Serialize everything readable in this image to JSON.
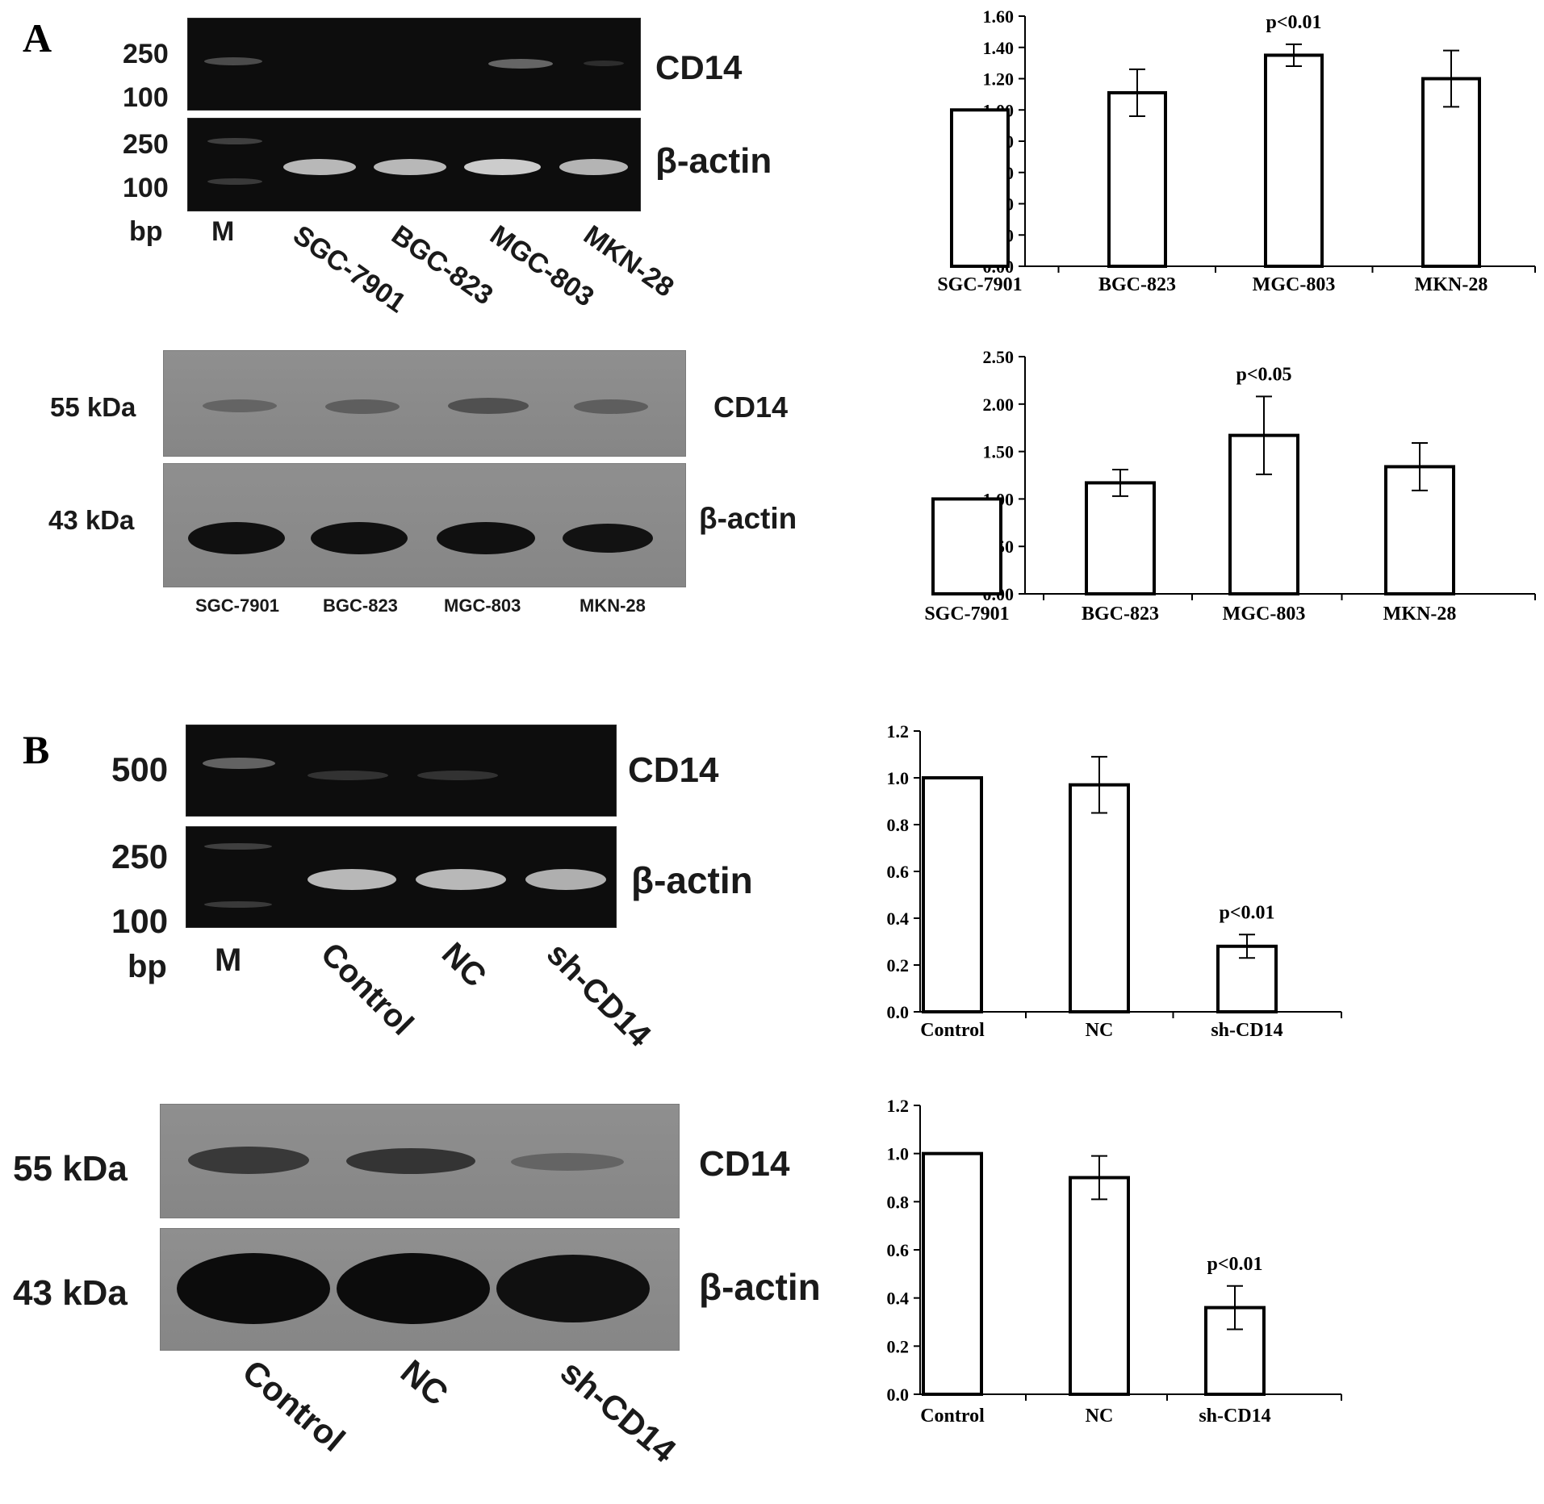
{
  "panels": {
    "a": {
      "letter": "A",
      "rtpcr": {
        "markers": [
          "250",
          "100",
          "250",
          "100"
        ],
        "bp": "bp",
        "lanes": [
          "M",
          "SGC-7901",
          "BGC-823",
          "MGC-803",
          "MKN-28"
        ],
        "targets": [
          "CD14",
          "β-actin"
        ]
      },
      "western": {
        "sizes": [
          "55 kDa",
          "43 kDa"
        ],
        "targets": [
          "CD14",
          "β-actin"
        ],
        "lanes": [
          "SGC-7901",
          "BGC-823",
          "MGC-803",
          "MKN-28"
        ]
      }
    },
    "b": {
      "letter": "B",
      "rtpcr": {
        "markers": [
          "500",
          "250",
          "100"
        ],
        "bp": "bp",
        "lanes": [
          "M",
          "Control",
          "NC",
          "sh-CD14"
        ],
        "targets": [
          "CD14",
          "β-actin"
        ]
      },
      "western": {
        "sizes": [
          "55 kDa",
          "43 kDa"
        ],
        "targets": [
          "CD14",
          "β-actin"
        ],
        "lanes": [
          "Control",
          "NC",
          "sh-CD14"
        ]
      }
    }
  },
  "chart_data": [
    {
      "type": "bar",
      "categories": [
        "SGC-7901",
        "BGC-823",
        "MGC-803",
        "MKN-28"
      ],
      "values": [
        1.0,
        1.11,
        1.35,
        1.2
      ],
      "errors": [
        0.0,
        0.15,
        0.07,
        0.18
      ],
      "ylim": [
        0,
        1.6
      ],
      "yticks": [
        "0.00",
        "0.20",
        "0.40",
        "0.60",
        "0.80",
        "1.00",
        "1.20",
        "1.40",
        "1.60"
      ],
      "annotations": [
        {
          "category": "MGC-803",
          "text": "p<0.01"
        }
      ]
    },
    {
      "type": "bar",
      "categories": [
        "SGC-7901",
        "BGC-823",
        "MGC-803",
        "MKN-28"
      ],
      "values": [
        1.0,
        1.17,
        1.67,
        1.34
      ],
      "errors": [
        0.0,
        0.14,
        0.41,
        0.25
      ],
      "ylim": [
        0,
        2.5
      ],
      "yticks": [
        "0.00",
        "0.50",
        "1.00",
        "1.50",
        "2.00",
        "2.50"
      ],
      "annotations": [
        {
          "category": "MGC-803",
          "text": "p<0.05"
        }
      ]
    },
    {
      "type": "bar",
      "categories": [
        "Control",
        "NC",
        "sh-CD14"
      ],
      "values": [
        1.0,
        0.97,
        0.28
      ],
      "errors": [
        0.0,
        0.12,
        0.05
      ],
      "ylim": [
        0,
        1.2
      ],
      "yticks": [
        "0.0",
        "0.2",
        "0.4",
        "0.6",
        "0.8",
        "1.0",
        "1.2"
      ],
      "annotations": [
        {
          "category": "sh-CD14",
          "text": "p<0.01"
        }
      ]
    },
    {
      "type": "bar",
      "categories": [
        "Control",
        "NC",
        "sh-CD14"
      ],
      "values": [
        1.0,
        0.9,
        0.36
      ],
      "errors": [
        0.0,
        0.09,
        0.09
      ],
      "ylim": [
        0,
        1.2
      ],
      "yticks": [
        "0.0",
        "0.2",
        "0.4",
        "0.6",
        "0.8",
        "1.0",
        "1.2"
      ],
      "annotations": [
        {
          "category": "sh-CD14",
          "text": "p<0.01"
        }
      ]
    }
  ]
}
